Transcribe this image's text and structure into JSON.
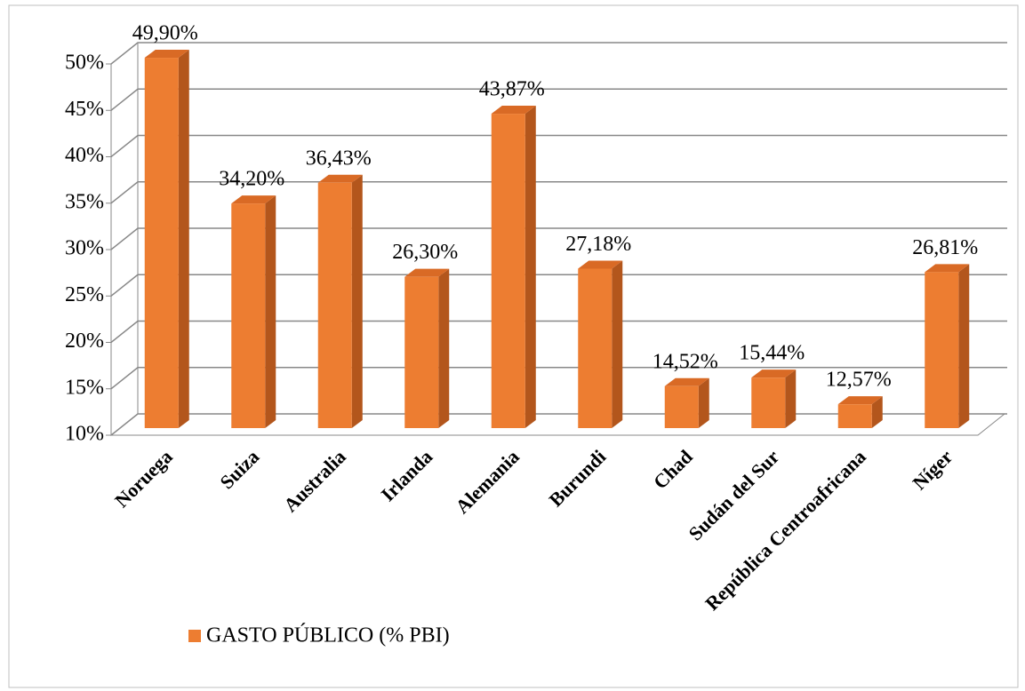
{
  "chart_data": {
    "type": "bar3d",
    "categories": [
      "Noruega",
      "Suiza",
      "Australia",
      "Irlanda",
      "Alemania",
      "Burundi",
      "Chad",
      "Sudán del Sur",
      "República Centroafricana",
      "Níger"
    ],
    "series": [
      {
        "name": "GASTO PÚBLICO (% PBI)",
        "color": "#ed7d31",
        "values": [
          49.9,
          34.2,
          36.43,
          26.3,
          43.87,
          27.18,
          14.52,
          15.44,
          12.57,
          26.81
        ],
        "value_labels": [
          "49,90%",
          "34,20%",
          "36,43%",
          "26,30%",
          "43,87%",
          "27,18%",
          "14,52%",
          "15,44%",
          "12,57%",
          "26,81%"
        ]
      }
    ],
    "ylim": [
      10,
      50
    ],
    "yticks": [
      {
        "value": 10,
        "label": "10%"
      },
      {
        "value": 15,
        "label": "15%"
      },
      {
        "value": 20,
        "label": "20%"
      },
      {
        "value": 25,
        "label": "25%"
      },
      {
        "value": 30,
        "label": "30%"
      },
      {
        "value": 35,
        "label": "35%"
      },
      {
        "value": 40,
        "label": "40%"
      },
      {
        "value": 45,
        "label": "45%"
      },
      {
        "value": 50,
        "label": "50%"
      }
    ],
    "grid": true,
    "legend": "bottom-left"
  }
}
